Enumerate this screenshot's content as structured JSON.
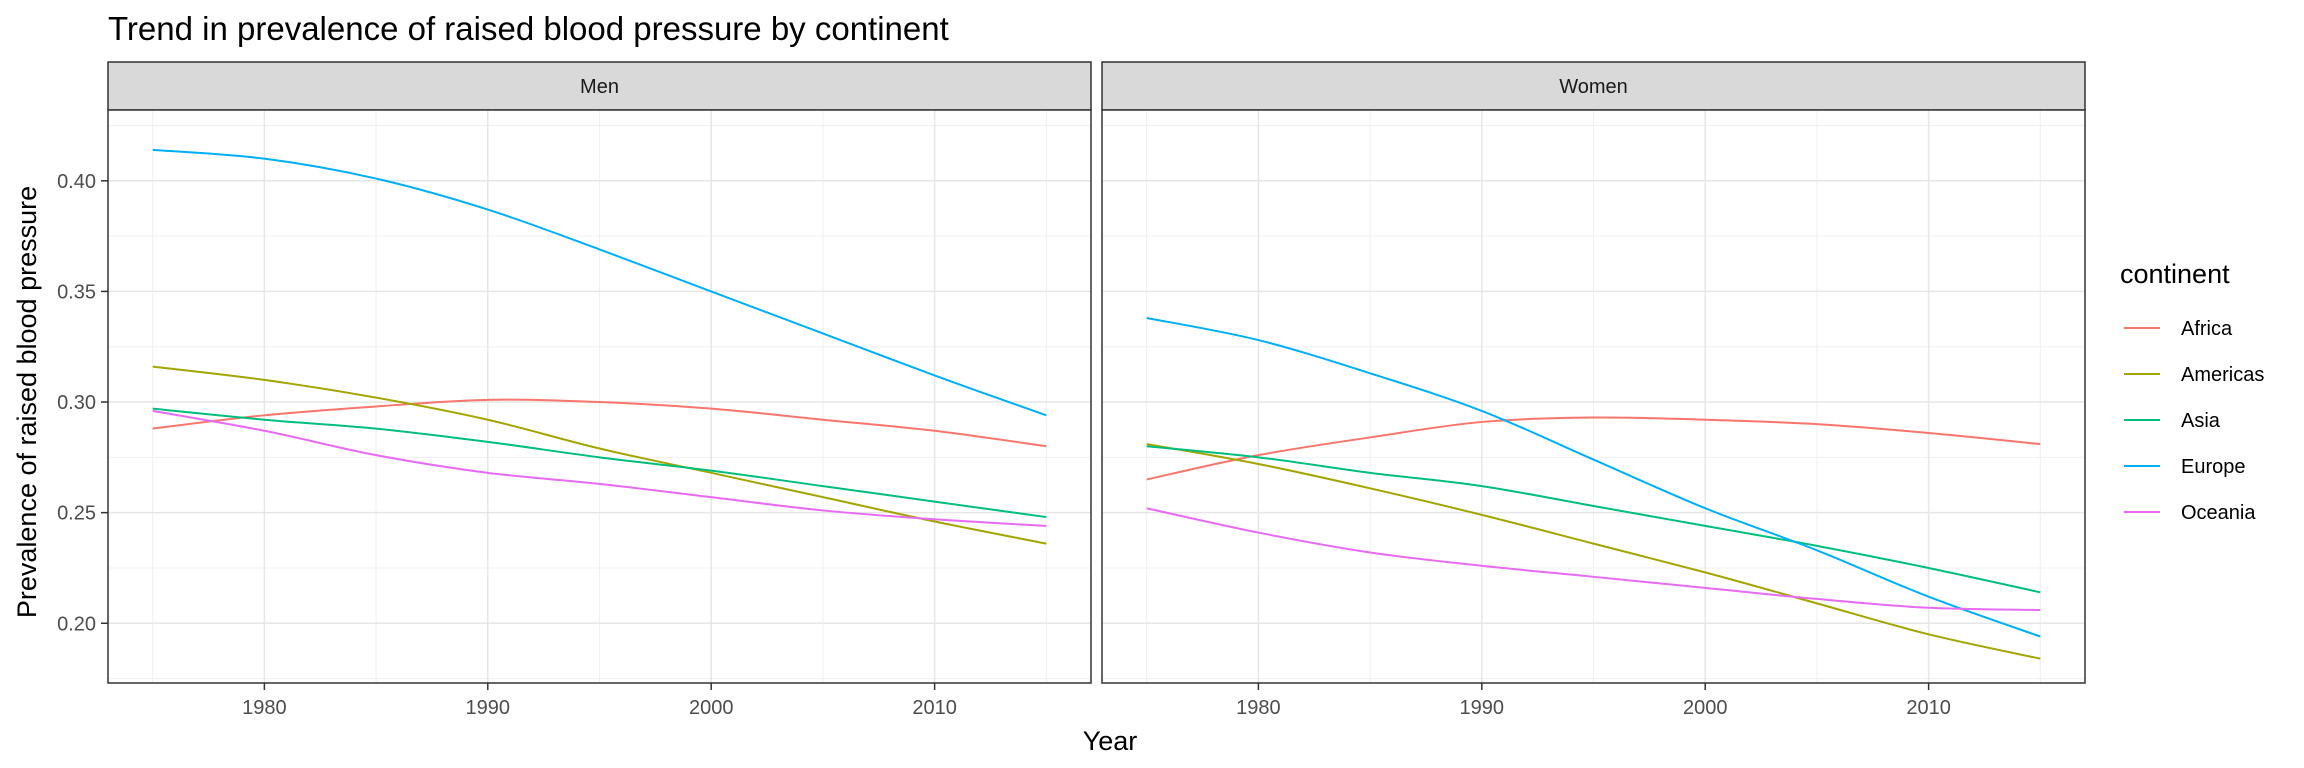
{
  "chart_data": {
    "type": "line",
    "title": "Trend in prevalence of raised blood pressure by continent",
    "xlabel": "Year",
    "ylabel": "Prevalence of raised blood pressure",
    "xlim": [
      1973,
      2017
    ],
    "ylim": [
      0.173,
      0.432
    ],
    "x_ticks": [
      1980,
      1990,
      2000,
      2010
    ],
    "y_ticks": [
      0.2,
      0.25,
      0.3,
      0.35,
      0.4
    ],
    "y_tick_labels": [
      "0.20",
      "0.25",
      "0.30",
      "0.35",
      "0.40"
    ],
    "grid": true,
    "legend": {
      "title": "continent",
      "position": "right"
    },
    "x": [
      1975,
      1980,
      1985,
      1990,
      1995,
      2000,
      2005,
      2010,
      2015
    ],
    "series_colors": {
      "Africa": "#F8766D",
      "Americas": "#A3A500",
      "Asia": "#00BF7D",
      "Europe": "#00B0F6",
      "Oceania": "#E76BF3"
    },
    "panels": [
      {
        "name": "Men",
        "series": [
          {
            "name": "Africa",
            "values": [
              0.288,
              0.294,
              0.298,
              0.301,
              0.3,
              0.297,
              0.292,
              0.287,
              0.28
            ]
          },
          {
            "name": "Americas",
            "values": [
              0.316,
              0.31,
              0.302,
              0.292,
              0.279,
              0.268,
              0.257,
              0.246,
              0.236
            ]
          },
          {
            "name": "Asia",
            "values": [
              0.297,
              0.292,
              0.288,
              0.282,
              0.275,
              0.269,
              0.262,
              0.255,
              0.248
            ]
          },
          {
            "name": "Europe",
            "values": [
              0.414,
              0.41,
              0.401,
              0.387,
              0.369,
              0.35,
              0.331,
              0.312,
              0.294
            ]
          },
          {
            "name": "Oceania",
            "values": [
              0.296,
              0.287,
              0.276,
              0.268,
              0.263,
              0.257,
              0.251,
              0.247,
              0.244
            ]
          }
        ]
      },
      {
        "name": "Women",
        "series": [
          {
            "name": "Africa",
            "values": [
              0.265,
              0.276,
              0.284,
              0.291,
              0.293,
              0.292,
              0.29,
              0.286,
              0.281
            ]
          },
          {
            "name": "Americas",
            "values": [
              0.281,
              0.272,
              0.261,
              0.249,
              0.236,
              0.223,
              0.209,
              0.195,
              0.184
            ]
          },
          {
            "name": "Asia",
            "values": [
              0.28,
              0.275,
              0.268,
              0.262,
              0.253,
              0.244,
              0.235,
              0.225,
              0.214
            ]
          },
          {
            "name": "Europe",
            "values": [
              0.338,
              0.328,
              0.313,
              0.296,
              0.274,
              0.252,
              0.233,
              0.212,
              0.194
            ]
          },
          {
            "name": "Oceania",
            "values": [
              0.252,
              0.241,
              0.232,
              0.226,
              0.221,
              0.216,
              0.211,
              0.207,
              0.206
            ]
          }
        ]
      }
    ]
  }
}
